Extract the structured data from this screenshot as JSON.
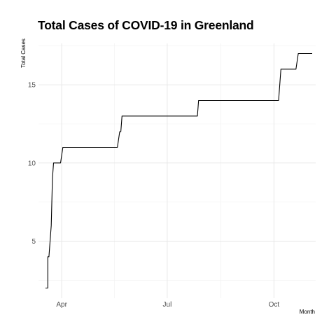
{
  "chart_data": {
    "type": "line",
    "title": "Total Cases of COVID-19 in Greenland",
    "xlabel": "Month",
    "ylabel": "Total Cases",
    "x_tick_labels": [
      "Apr",
      "Jul",
      "Oct"
    ],
    "x_ticks": [
      "2020-04-01",
      "2020-07-01",
      "2020-10-01"
    ],
    "y_ticks": [
      5,
      10,
      15
    ],
    "xlim": [
      "2020-03-12",
      "2020-11-06"
    ],
    "ylim": [
      1.35,
      17.65
    ],
    "grid": true,
    "series": [
      {
        "color": "#000000",
        "points": [
          {
            "x": "2020-03-18",
            "y": 2
          },
          {
            "x": "2020-03-20",
            "y": 2
          },
          {
            "x": "2020-03-20",
            "y": 4
          },
          {
            "x": "2020-03-21",
            "y": 4
          },
          {
            "x": "2020-03-23",
            "y": 6
          },
          {
            "x": "2020-03-24",
            "y": 9
          },
          {
            "x": "2020-03-25",
            "y": 10
          },
          {
            "x": "2020-03-31",
            "y": 10
          },
          {
            "x": "2020-04-02",
            "y": 11
          },
          {
            "x": "2020-05-19",
            "y": 11
          },
          {
            "x": "2020-05-21",
            "y": 12
          },
          {
            "x": "2020-05-22",
            "y": 12
          },
          {
            "x": "2020-05-23",
            "y": 13
          },
          {
            "x": "2020-07-27",
            "y": 13
          },
          {
            "x": "2020-07-28",
            "y": 14
          },
          {
            "x": "2020-10-05",
            "y": 14
          },
          {
            "x": "2020-10-07",
            "y": 16
          },
          {
            "x": "2020-10-20",
            "y": 16
          },
          {
            "x": "2020-10-22",
            "y": 17
          },
          {
            "x": "2020-11-03",
            "y": 17
          }
        ]
      }
    ]
  }
}
